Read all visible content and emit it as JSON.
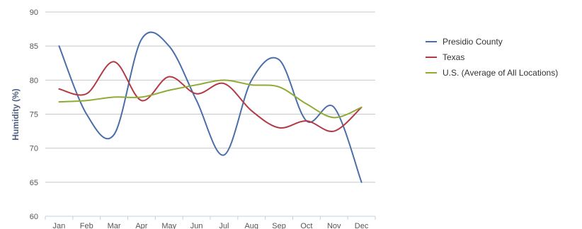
{
  "chart_data": {
    "type": "line",
    "categories": [
      "Jan",
      "Feb",
      "Mar",
      "Apr",
      "May",
      "Jun",
      "Jul",
      "Aug",
      "Sep",
      "Oct",
      "Nov",
      "Dec"
    ],
    "ylabel": "Humidity (%)",
    "ylim": [
      60,
      90
    ],
    "yticks": [
      60,
      65,
      70,
      75,
      80,
      85,
      90
    ],
    "grid": true,
    "legend_position": "right",
    "series": [
      {
        "name": "Presidio County",
        "color": "#4a6ea9",
        "values": [
          85,
          75,
          72,
          86,
          85,
          77,
          69,
          80,
          83,
          74,
          76,
          65
        ]
      },
      {
        "name": "Texas",
        "color": "#b33a44",
        "values": [
          78.7,
          78,
          82.7,
          77,
          80.5,
          78,
          79.5,
          75.5,
          73,
          74,
          72.5,
          76
        ]
      },
      {
        "name": "U.S. (Average of All Locations)",
        "color": "#8fab35",
        "values": [
          76.8,
          77,
          77.5,
          77.5,
          78.5,
          79.3,
          80,
          79.3,
          79,
          76.5,
          74.5,
          76
        ]
      }
    ]
  }
}
